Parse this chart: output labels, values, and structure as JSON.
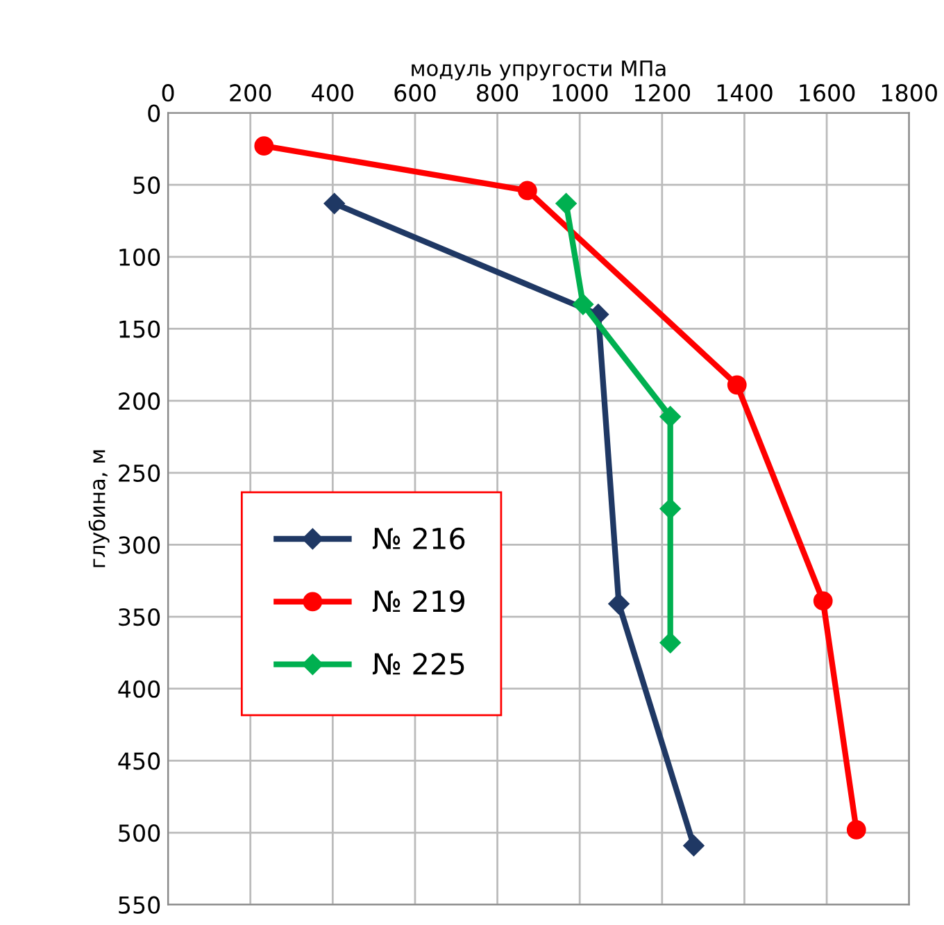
{
  "chart_data": {
    "type": "line",
    "xlabel": "модуль упругости МПа",
    "ylabel": "глубина, м",
    "xlim": [
      0,
      1800
    ],
    "xticks": [
      0,
      200,
      400,
      600,
      800,
      1000,
      1200,
      1400,
      1600,
      1800
    ],
    "ylim": [
      550,
      0
    ],
    "yticks": [
      0,
      50,
      100,
      150,
      200,
      250,
      300,
      350,
      400,
      450,
      500,
      550
    ],
    "grid": true,
    "legend": "left",
    "series": [
      {
        "name": "№ 216",
        "color": "#1f3864",
        "marker": "diamond",
        "x": [
          404,
          1045,
          1095,
          1277
        ],
        "values": [
          63,
          140,
          341,
          509
        ]
      },
      {
        "name": "№ 219",
        "color": "#ff0000",
        "marker": "circle",
        "x": [
          233,
          873,
          1382,
          1591,
          1672
        ],
        "values": [
          23,
          54,
          189,
          339,
          498
        ]
      },
      {
        "name": "№ 225",
        "color": "#00b050",
        "marker": "diamond",
        "x": [
          967,
          1008,
          1220,
          1220,
          1220
        ],
        "values": [
          63,
          133,
          211,
          275,
          368
        ]
      }
    ]
  }
}
